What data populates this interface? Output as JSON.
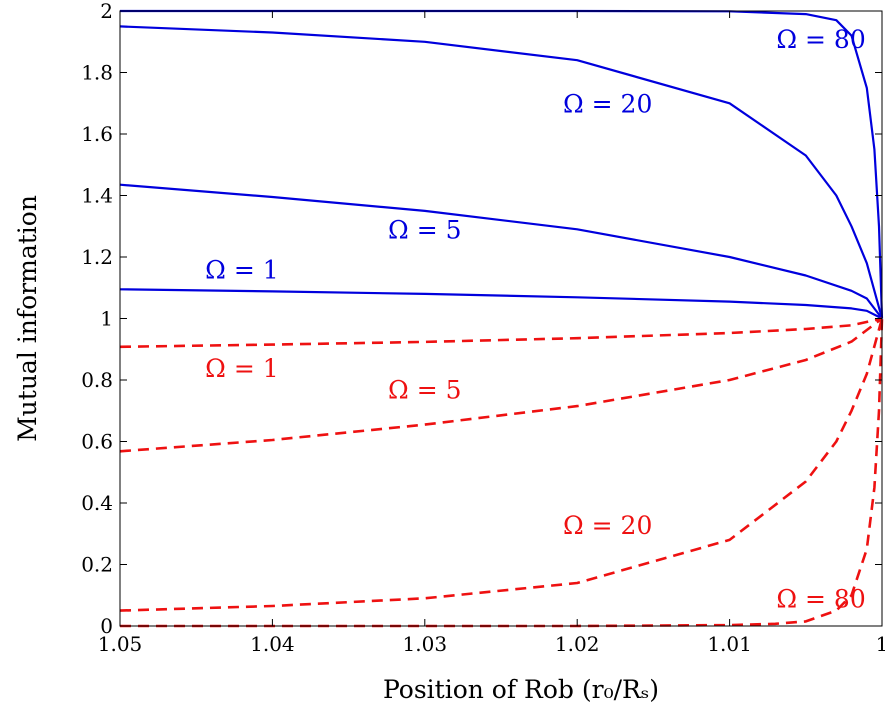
{
  "chart_data": {
    "type": "line",
    "title": "",
    "xlabel": "Position of Rob (r₀/Rₛ)",
    "ylabel": "Mutual information",
    "xlim": [
      1.05,
      1.0
    ],
    "ylim": [
      0,
      2
    ],
    "x_reversed": true,
    "xticks": [
      1.05,
      1.04,
      1.03,
      1.02,
      1.01,
      1.0
    ],
    "xtick_labels": [
      "1.05",
      "1.04",
      "1.03",
      "1.02",
      "1.01",
      "1"
    ],
    "yticks": [
      0,
      0.2,
      0.4,
      0.6,
      0.8,
      1,
      1.2,
      1.4,
      1.6,
      1.8,
      2
    ],
    "ytick_labels": [
      "0",
      "0.2",
      "0.4",
      "0.6",
      "0.8",
      "1",
      "1.2",
      "1.4",
      "1.6",
      "1.8",
      "2"
    ],
    "grid": false,
    "legend": "none",
    "colors": {
      "blue": "#0000dd",
      "red": "#ee1111"
    },
    "series": [
      {
        "color": "blue",
        "style": "solid",
        "x": [
          1.05,
          1.04,
          1.03,
          1.02,
          1.01,
          1.005,
          1.002,
          1.001,
          1.0
        ],
        "y": [
          1.095,
          1.088,
          1.08,
          1.069,
          1.055,
          1.044,
          1.033,
          1.025,
          1.0
        ]
      },
      {
        "color": "blue",
        "style": "solid",
        "x": [
          1.05,
          1.04,
          1.03,
          1.02,
          1.01,
          1.005,
          1.002,
          1.001,
          1.0
        ],
        "y": [
          1.435,
          1.395,
          1.35,
          1.29,
          1.2,
          1.14,
          1.09,
          1.065,
          1.0
        ]
      },
      {
        "color": "blue",
        "style": "solid",
        "x": [
          1.05,
          1.04,
          1.03,
          1.02,
          1.01,
          1.005,
          1.003,
          1.002,
          1.001,
          1.0
        ],
        "y": [
          1.95,
          1.93,
          1.9,
          1.84,
          1.7,
          1.53,
          1.4,
          1.3,
          1.18,
          1.0
        ]
      },
      {
        "color": "blue",
        "style": "solid",
        "x": [
          1.05,
          1.02,
          1.01,
          1.005,
          1.003,
          1.002,
          1.001,
          1.0005,
          1.0002,
          1.0
        ],
        "y": [
          2.0,
          2.0,
          1.999,
          1.99,
          1.97,
          1.92,
          1.75,
          1.55,
          1.3,
          1.0
        ]
      },
      {
        "color": "red",
        "style": "dashed",
        "x": [
          1.05,
          1.04,
          1.03,
          1.02,
          1.01,
          1.005,
          1.002,
          1.0
        ],
        "y": [
          0.908,
          0.915,
          0.924,
          0.936,
          0.953,
          0.966,
          0.978,
          1.0
        ]
      },
      {
        "color": "red",
        "style": "dashed",
        "x": [
          1.05,
          1.04,
          1.03,
          1.02,
          1.01,
          1.005,
          1.002,
          1.0
        ],
        "y": [
          0.568,
          0.605,
          0.655,
          0.715,
          0.8,
          0.865,
          0.925,
          1.0
        ]
      },
      {
        "color": "red",
        "style": "dashed",
        "x": [
          1.05,
          1.04,
          1.03,
          1.02,
          1.01,
          1.005,
          1.003,
          1.002,
          1.001,
          1.0
        ],
        "y": [
          0.05,
          0.065,
          0.09,
          0.14,
          0.28,
          0.47,
          0.6,
          0.7,
          0.82,
          1.0
        ]
      },
      {
        "color": "red",
        "style": "dashed",
        "x": [
          1.05,
          1.02,
          1.01,
          1.007,
          1.005,
          1.003,
          1.002,
          1.001,
          1.0005,
          1.0002,
          1.0
        ],
        "y": [
          0.0,
          0.0,
          0.003,
          0.007,
          0.015,
          0.05,
          0.1,
          0.25,
          0.45,
          0.7,
          1.0
        ]
      }
    ],
    "annotations": [
      {
        "text": "Ω = 80",
        "color": "blue",
        "x": 1.004,
        "y": 1.88
      },
      {
        "text": "Ω = 20",
        "color": "blue",
        "x": 1.018,
        "y": 1.67
      },
      {
        "text": "Ω = 5",
        "color": "blue",
        "x": 1.03,
        "y": 1.26
      },
      {
        "text": "Ω = 1",
        "color": "blue",
        "x": 1.042,
        "y": 1.13
      },
      {
        "text": "Ω = 1",
        "color": "red",
        "x": 1.042,
        "y": 0.81
      },
      {
        "text": "Ω = 5",
        "color": "red",
        "x": 1.03,
        "y": 0.74
      },
      {
        "text": "Ω = 20",
        "color": "red",
        "x": 1.018,
        "y": 0.3
      },
      {
        "text": "Ω = 80",
        "color": "red",
        "x": 1.004,
        "y": 0.06
      }
    ]
  }
}
